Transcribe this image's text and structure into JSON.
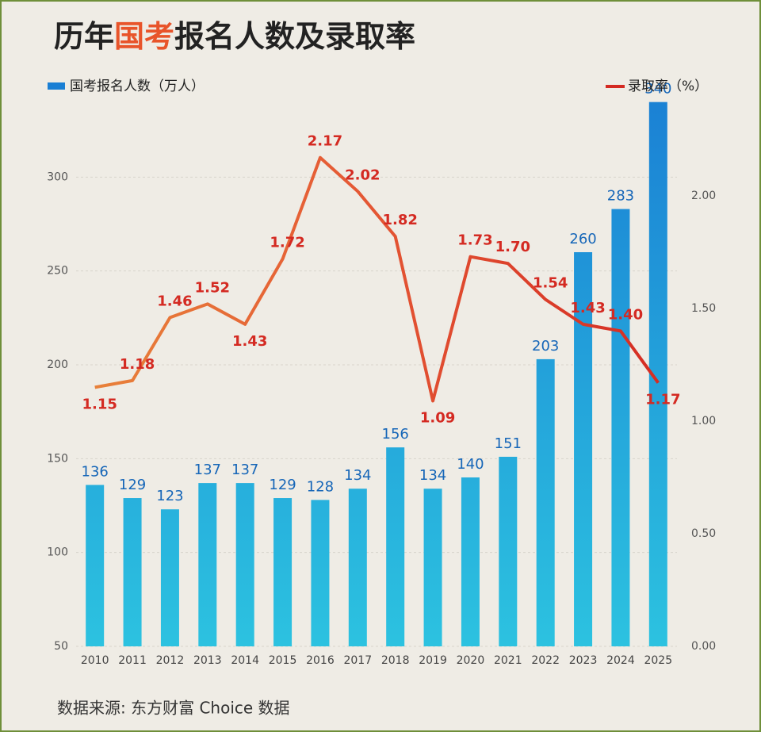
{
  "chart_data": {
    "type": "bar-line",
    "title_parts": [
      "历年",
      "国考",
      "报名人数及录取率"
    ],
    "title_highlight_color": "#e8542a",
    "categories": [
      "2010",
      "2011",
      "2012",
      "2013",
      "2014",
      "2015",
      "2016",
      "2017",
      "2018",
      "2019",
      "2020",
      "2021",
      "2022",
      "2023",
      "2024",
      "2025"
    ],
    "series": [
      {
        "name": "国考报名人数（万人）",
        "color": "#1a7fd4",
        "axis": "y",
        "kind": "bar",
        "values": [
          136,
          129,
          123,
          137,
          137,
          129,
          128,
          134,
          156,
          134,
          140,
          151,
          203,
          260,
          283,
          340
        ]
      },
      {
        "name": "录取率（%）",
        "color": "#d42a22",
        "axis": "y2",
        "kind": "line",
        "values": [
          1.15,
          1.18,
          1.46,
          1.52,
          1.43,
          1.72,
          2.17,
          2.02,
          1.82,
          1.09,
          1.73,
          1.7,
          1.54,
          1.43,
          1.4,
          1.17
        ],
        "value_labels": [
          "1.15",
          "1.18",
          "1.46",
          "1.52",
          "1.43",
          "1.72",
          "2.17",
          "2.02",
          "1.82",
          "1.09",
          "1.73",
          "1.70",
          "1.54",
          "1.43",
          "1.40",
          "1.17"
        ]
      }
    ],
    "ylim": [
      50,
      350
    ],
    "yticks": [
      50,
      100,
      150,
      200,
      250,
      300
    ],
    "y2lim": [
      0,
      2.5
    ],
    "y2ticks": [
      {
        "value": 0,
        "label": "0.00"
      },
      {
        "value": 0.5,
        "label": "0.50"
      },
      {
        "value": 1,
        "label": "1.00"
      },
      {
        "value": 1.5,
        "label": "1.50"
      },
      {
        "value": 2,
        "label": "2.00"
      }
    ],
    "grid": true,
    "source": "数据来源: 东方财富 Choice 数据"
  }
}
